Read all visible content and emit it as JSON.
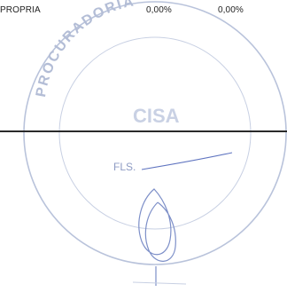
{
  "row": {
    "label": "PROPRIA",
    "value_1": "0,00%",
    "value_2": "0,00%"
  },
  "stamp": {
    "top_text": "PROCURADORIA",
    "middle_text": "CISA",
    "fls_label": "FLS.",
    "ink_color": "#b3bdd6"
  },
  "signature": {
    "ink_color": "#5f74c0"
  }
}
